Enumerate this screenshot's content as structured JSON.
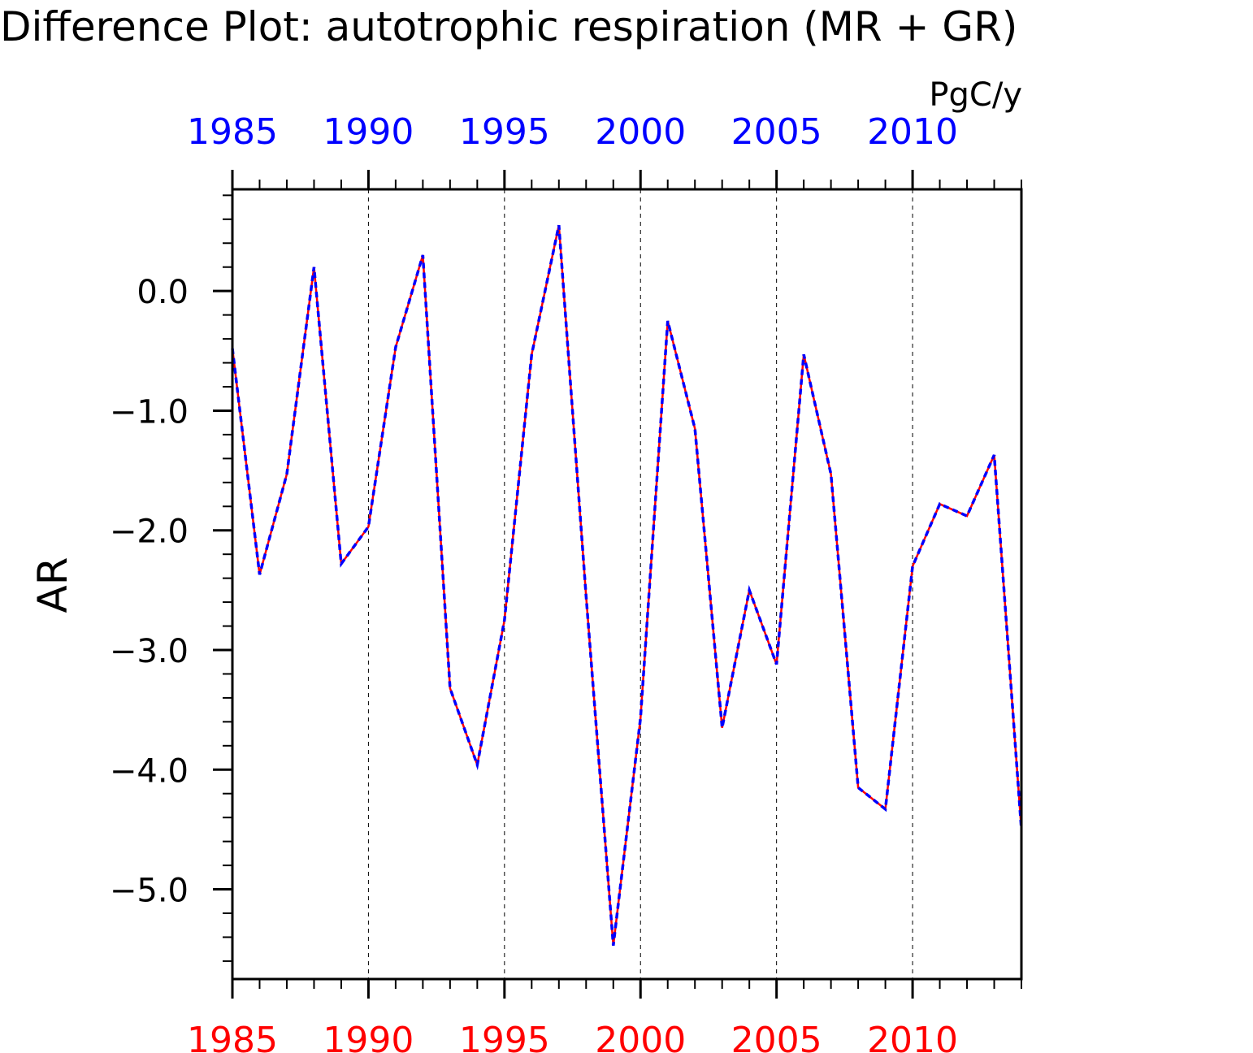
{
  "chart_data": {
    "type": "line",
    "title": "Difference Plot: autotrophic respiration (MR + GR)",
    "units": "PgC/y",
    "ylabel": "AR",
    "xlabel": "",
    "xlim": [
      1985,
      2014
    ],
    "ylim": [
      -5.75,
      0.85
    ],
    "x_ticks": [
      1985,
      1990,
      1995,
      2000,
      2005,
      2010
    ],
    "y_ticks": [
      0.0,
      -1.0,
      -2.0,
      -3.0,
      -4.0,
      -5.0
    ],
    "y_tick_labels": [
      "0.0",
      "−1.0",
      "−2.0",
      "−3.0",
      "−4.0",
      "−5.0"
    ],
    "x_top_color": "#0000ff",
    "x_bottom_color": "#ff0000",
    "grid": "vertical-dashed",
    "x": [
      1985,
      1986,
      1987,
      1988,
      1989,
      1990,
      1991,
      1992,
      1993,
      1994,
      1995,
      1996,
      1997,
      1998,
      1999,
      2000,
      2001,
      2002,
      2003,
      2004,
      2005,
      2006,
      2007,
      2008,
      2009,
      2010,
      2011,
      2012,
      2013,
      2014
    ],
    "series": [
      {
        "color": "#ff0000",
        "style": "solid",
        "values": [
          -0.48,
          -2.37,
          -1.53,
          0.2,
          -2.28,
          -1.97,
          -0.47,
          0.3,
          -3.32,
          -3.96,
          -2.75,
          -0.53,
          0.55,
          -2.55,
          -5.47,
          -3.57,
          -0.25,
          -1.15,
          -3.65,
          -2.5,
          -3.12,
          -0.53,
          -1.53,
          -4.15,
          -4.33,
          -2.3,
          -1.78,
          -1.88,
          -1.37,
          -4.5
        ]
      },
      {
        "color": "#0000ff",
        "style": "dashed",
        "values": [
          -0.48,
          -2.37,
          -1.53,
          0.2,
          -2.28,
          -1.97,
          -0.47,
          0.3,
          -3.32,
          -3.96,
          -2.75,
          -0.53,
          0.55,
          -2.55,
          -5.47,
          -3.57,
          -0.25,
          -1.15,
          -3.65,
          -2.5,
          -3.12,
          -0.53,
          -1.53,
          -4.15,
          -4.33,
          -2.3,
          -1.78,
          -1.88,
          -1.37,
          -4.5
        ]
      }
    ]
  }
}
